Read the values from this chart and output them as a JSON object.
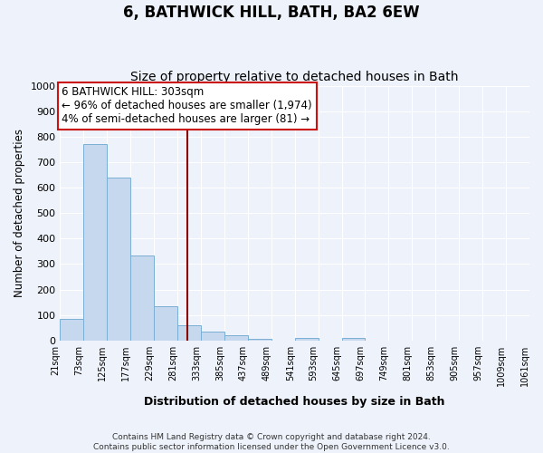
{
  "title": "6, BATHWICK HILL, BATH, BA2 6EW",
  "subtitle": "Size of property relative to detached houses in Bath",
  "xlabel": "Distribution of detached houses by size in Bath",
  "ylabel": "Number of detached properties",
  "bin_edges": [
    21,
    73,
    125,
    177,
    229,
    281,
    333,
    385,
    437,
    489,
    541,
    593,
    645,
    697,
    749,
    801,
    853,
    905,
    957,
    1009,
    1061
  ],
  "bar_heights": [
    85,
    770,
    640,
    335,
    135,
    60,
    35,
    20,
    5,
    0,
    10,
    0,
    10,
    0,
    0,
    0,
    0,
    0,
    0,
    0
  ],
  "bar_color": "#c5d8ee",
  "bar_edge_color": "#7bafd4",
  "vline_x": 303,
  "vline_color": "#8b0000",
  "annotation_line1": "6 BATHWICK HILL: 303sqm",
  "annotation_line2": "← 96% of detached houses are smaller (1,974)",
  "annotation_line3": "4% of semi-detached houses are larger (81) →",
  "ylim": [
    0,
    1000
  ],
  "yticks": [
    0,
    100,
    200,
    300,
    400,
    500,
    600,
    700,
    800,
    900,
    1000
  ],
  "background_color": "#eef2fa",
  "grid_color": "#d8dfe8",
  "footer_line1": "Contains HM Land Registry data © Crown copyright and database right 2024.",
  "footer_line2": "Contains public sector information licensed under the Open Government Licence v3.0."
}
